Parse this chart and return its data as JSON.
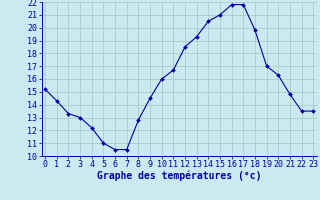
{
  "hours": [
    0,
    1,
    2,
    3,
    4,
    5,
    6,
    7,
    8,
    9,
    10,
    11,
    12,
    13,
    14,
    15,
    16,
    17,
    18,
    19,
    20,
    21,
    22,
    23
  ],
  "temps": [
    15.2,
    14.3,
    13.3,
    13.0,
    12.2,
    11.0,
    10.5,
    10.5,
    12.8,
    14.5,
    16.0,
    16.7,
    18.5,
    19.3,
    20.5,
    21.0,
    21.8,
    21.8,
    19.8,
    17.0,
    16.3,
    14.8,
    13.5,
    13.5
  ],
  "line_color": "#0000aa",
  "marker_color": "#0000aa",
  "bg_color": "#cce8f0",
  "grid_color": "#99ccbb",
  "xlabel": "Graphe des températures (°c)",
  "ylim": [
    10,
    22
  ],
  "yticks": [
    10,
    11,
    12,
    13,
    14,
    15,
    16,
    17,
    18,
    19,
    20,
    21,
    22
  ],
  "xticks": [
    0,
    1,
    2,
    3,
    4,
    5,
    6,
    7,
    8,
    9,
    10,
    11,
    12,
    13,
    14,
    15,
    16,
    17,
    18,
    19,
    20,
    21,
    22,
    23
  ],
  "xlabel_color": "#0000aa",
  "tick_color": "#0000aa",
  "axis_label_fontsize": 7,
  "tick_fontsize": 6
}
